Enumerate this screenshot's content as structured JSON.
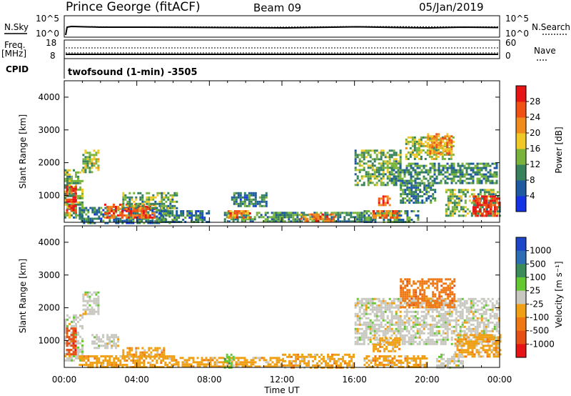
{
  "header": {
    "station": "Prince George (fitACF)",
    "beam": "Beam 09",
    "date": "05/Jan/2019"
  },
  "top_panel": {
    "nsky_label": "N.Sky",
    "nsearch_label": "N.Search",
    "left_ticks": [
      "10^5",
      "10^0"
    ],
    "right_ticks": [
      "10^5",
      "10^0"
    ]
  },
  "freq_panel": {
    "freq_label": "Freq.",
    "freq_unit": "[MHz]",
    "nave_label": "Nave",
    "cpid_label": "CPID",
    "left_ticks": [
      "18",
      "8"
    ],
    "right_ticks": [
      "60",
      "0"
    ],
    "cpid_text": "twofsound (1-min) -3505"
  },
  "colors": {
    "power": [
      "#1432e6",
      "#1e5aa0",
      "#37825a",
      "#78b43c",
      "#f0c828",
      "#f08c1e",
      "#f05014",
      "#e61414"
    ],
    "velocity": [
      "#1e46c8",
      "#2d6eb4",
      "#3c8c5a",
      "#64c832",
      "#c8c8c0",
      "#f0a014",
      "#f07814",
      "#e65014",
      "#e61414"
    ]
  },
  "chart_data": [
    {
      "type": "heatmap",
      "ylabel": "Slant Range [km]",
      "xlabel": "Time UT",
      "x_ticks": [
        "00:00",
        "04:00",
        "08:00",
        "12:00",
        "16:00",
        "20:00",
        "00:00"
      ],
      "y_ticks": [
        "1000",
        "2000",
        "3000",
        "4000"
      ],
      "ylim": [
        180,
        4500
      ],
      "xlim_hours": [
        0,
        24
      ],
      "colorbar_label": "Power [dB]",
      "colorbar_ticks": [
        "4",
        "8",
        "12",
        "16",
        "20",
        "24",
        "28"
      ],
      "colorbar_range": [
        0,
        30
      ],
      "regions": [
        {
          "t0": 0.0,
          "t1": 1.0,
          "r0": 300,
          "r1": 1800,
          "v": 12
        },
        {
          "t0": 0.1,
          "t1": 0.6,
          "r0": 500,
          "r1": 1300,
          "v": 27
        },
        {
          "t0": 1.0,
          "t1": 1.9,
          "r0": 1700,
          "r1": 2400,
          "v": 14
        },
        {
          "t0": 0.8,
          "t1": 5.8,
          "r0": 180,
          "r1": 650,
          "v": 8
        },
        {
          "t0": 2.2,
          "t1": 5.0,
          "r0": 350,
          "r1": 750,
          "v": 24
        },
        {
          "t0": 3.2,
          "t1": 6.2,
          "r0": 600,
          "r1": 1100,
          "v": 12
        },
        {
          "t0": 5.2,
          "t1": 8.0,
          "r0": 180,
          "r1": 550,
          "v": 8
        },
        {
          "t0": 8.8,
          "t1": 12.3,
          "r0": 180,
          "r1": 500,
          "v": 10
        },
        {
          "t0": 9.0,
          "t1": 10.2,
          "r0": 300,
          "r1": 550,
          "v": 22
        },
        {
          "t0": 9.2,
          "t1": 11.2,
          "r0": 700,
          "r1": 1100,
          "v": 8
        },
        {
          "t0": 11.5,
          "t1": 16.5,
          "r0": 180,
          "r1": 500,
          "v": 10
        },
        {
          "t0": 13.0,
          "t1": 15.0,
          "r0": 200,
          "r1": 450,
          "v": 22
        },
        {
          "t0": 16.0,
          "t1": 18.5,
          "r0": 1300,
          "r1": 2400,
          "v": 12
        },
        {
          "t0": 16.5,
          "t1": 19.5,
          "r0": 180,
          "r1": 550,
          "v": 10
        },
        {
          "t0": 17.0,
          "t1": 18.5,
          "r0": 300,
          "r1": 550,
          "v": 22
        },
        {
          "t0": 17.3,
          "t1": 18.0,
          "r0": 700,
          "r1": 1000,
          "v": 24
        },
        {
          "t0": 18.0,
          "t1": 23.8,
          "r0": 1400,
          "r1": 2000,
          "v": 10
        },
        {
          "t0": 18.5,
          "t1": 20.5,
          "r0": 800,
          "r1": 1400,
          "v": 9
        },
        {
          "t0": 18.8,
          "t1": 21.5,
          "r0": 2100,
          "r1": 2800,
          "v": 14
        },
        {
          "t0": 20.0,
          "t1": 21.3,
          "r0": 2300,
          "r1": 2900,
          "v": 20
        },
        {
          "t0": 21.0,
          "t1": 24.0,
          "r0": 400,
          "r1": 1200,
          "v": 12
        },
        {
          "t0": 22.5,
          "t1": 24.0,
          "r0": 400,
          "r1": 1000,
          "v": 27
        }
      ]
    },
    {
      "type": "heatmap",
      "ylabel": "Slant Range [km]",
      "xlabel": "Time UT",
      "x_ticks": [
        "00:00",
        "04:00",
        "08:00",
        "12:00",
        "16:00",
        "20:00",
        "00:00"
      ],
      "y_ticks": [
        "1000",
        "2000",
        "3000",
        "4000"
      ],
      "ylim": [
        180,
        4500
      ],
      "xlim_hours": [
        0,
        24
      ],
      "colorbar_label": "Velocity [m s⁻¹]",
      "colorbar_ticks": [
        "1000",
        "500",
        "100",
        "25",
        "-25",
        "-100",
        "-500",
        "-1000"
      ],
      "regions": [
        {
          "t0": 0.0,
          "t1": 1.0,
          "r0": 400,
          "r1": 1800,
          "c": 4
        },
        {
          "t0": 0.1,
          "t1": 0.6,
          "r0": 600,
          "r1": 1400,
          "c": 7
        },
        {
          "t0": 1.0,
          "t1": 1.9,
          "r0": 1800,
          "r1": 2500,
          "c": 4
        },
        {
          "t0": 1.5,
          "t1": 3.0,
          "r0": 800,
          "r1": 1200,
          "c": 4
        },
        {
          "t0": 0.8,
          "t1": 6.0,
          "r0": 180,
          "r1": 550,
          "c": 5
        },
        {
          "t0": 3.2,
          "t1": 5.5,
          "r0": 500,
          "r1": 800,
          "c": 5
        },
        {
          "t0": 6.0,
          "t1": 12.0,
          "r0": 180,
          "r1": 500,
          "c": 5
        },
        {
          "t0": 8.8,
          "t1": 9.3,
          "r0": 200,
          "r1": 600,
          "c": 3
        },
        {
          "t0": 12.0,
          "t1": 16.0,
          "r0": 180,
          "r1": 600,
          "c": 5
        },
        {
          "t0": 16.0,
          "t1": 24.0,
          "r0": 900,
          "r1": 2300,
          "c": 4
        },
        {
          "t0": 16.5,
          "t1": 20.0,
          "r0": 180,
          "r1": 550,
          "c": 5
        },
        {
          "t0": 17.0,
          "t1": 18.5,
          "r0": 700,
          "r1": 1100,
          "c": 5
        },
        {
          "t0": 18.5,
          "t1": 21.5,
          "r0": 2000,
          "r1": 2900,
          "c": 6
        },
        {
          "t0": 21.5,
          "t1": 24.0,
          "r0": 500,
          "r1": 1200,
          "c": 5
        },
        {
          "t0": 20.5,
          "t1": 22.0,
          "r0": 200,
          "r1": 600,
          "c": 4
        }
      ]
    }
  ]
}
